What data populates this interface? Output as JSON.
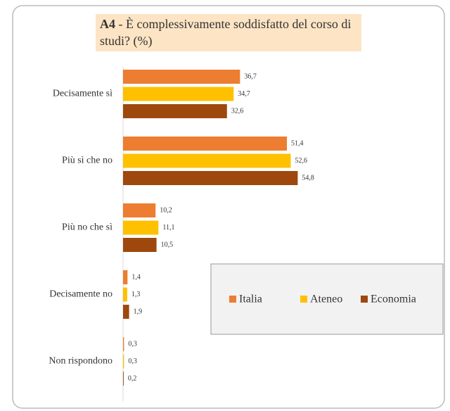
{
  "chart_data": {
    "type": "hbar",
    "title": {
      "code": "A4",
      "text": "- È complessivamente soddisfatto del corso di studi? (%)"
    },
    "categories": [
      "Decisamente sì",
      "Più sì che no",
      "Più no che sì",
      "Decisamente no",
      "Non rispondono"
    ],
    "series": [
      {
        "name": "Italia",
        "color": "#ed7d31",
        "values": [
          36.7,
          51.4,
          10.2,
          1.4,
          0.3
        ],
        "value_labels": [
          "36,7",
          "51,4",
          "10,2",
          "1,4",
          "0,3"
        ]
      },
      {
        "name": "Ateneo",
        "color": "#ffc000",
        "values": [
          34.7,
          52.6,
          11.1,
          1.3,
          0.3
        ],
        "value_labels": [
          "34,7",
          "52,6",
          "11,1",
          "1,3",
          "0,3"
        ]
      },
      {
        "name": "Economia",
        "color": "#9e480e",
        "values": [
          32.6,
          54.8,
          10.5,
          1.9,
          0.2
        ],
        "value_labels": [
          "32,6",
          "54,8",
          "10,5",
          "1,9",
          "0,2"
        ]
      }
    ],
    "xlim": [
      0,
      60
    ],
    "legend": "lower-right"
  }
}
